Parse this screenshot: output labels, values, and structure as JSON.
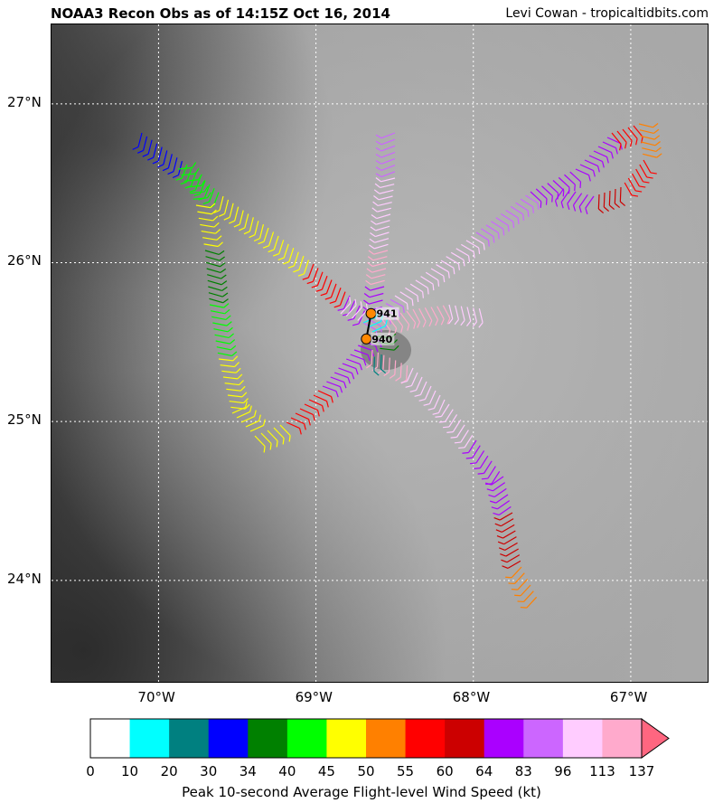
{
  "header": {
    "title": "NOAA3 Recon Obs as of 14:15Z Oct 16, 2014",
    "credit": "Levi Cowan - tropicaltidbits.com"
  },
  "map": {
    "lat_labels": [
      "27°N",
      "26°N",
      "25°N",
      "24°N"
    ],
    "lon_labels": [
      "70°W",
      "69°W",
      "68°W",
      "67°W"
    ],
    "extent": {
      "lon_min": -70.68,
      "lon_max": -66.5,
      "lat_min": 23.35,
      "lat_max": 27.5
    },
    "pressure_obs": [
      {
        "label": "941",
        "lon": -68.65,
        "lat": 25.68
      },
      {
        "label": "940",
        "lon": -68.68,
        "lat": 25.52
      }
    ],
    "center_marker_color": "#ff8800"
  },
  "colorbar": {
    "label": "Peak 10-second Average Flight-level Wind Speed (kt)",
    "ticks": [
      "0",
      "10",
      "20",
      "30",
      "34",
      "40",
      "45",
      "50",
      "55",
      "60",
      "64",
      "83",
      "96",
      "113",
      "137"
    ],
    "colors": [
      "#ffffff",
      "#00ffff",
      "#008080",
      "#0000ff",
      "#008000",
      "#00ff00",
      "#ffff00",
      "#ff8000",
      "#ff0000",
      "#cc0000",
      "#aa00ff",
      "#cc66ff",
      "#ffccff",
      "#ffaacc",
      "#ff6680"
    ]
  }
}
